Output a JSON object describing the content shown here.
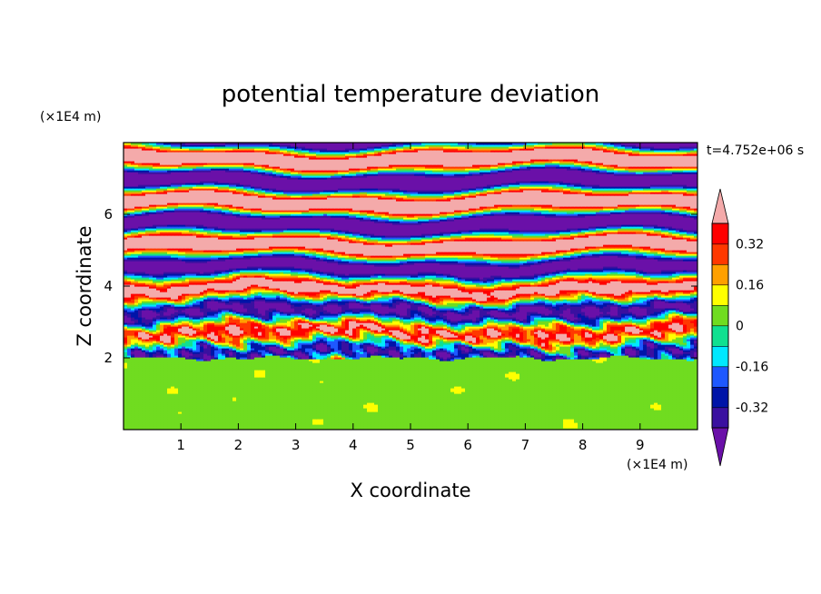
{
  "chart_data": {
    "type": "heatmap",
    "title": "potential temperature deviation",
    "xlabel": "X coordinate",
    "ylabel": "Z coordinate",
    "x_unit": "(×1E4 m)",
    "y_unit": "(×1E4 m)",
    "time_label": "t=4.752e+06 s",
    "xlim": [
      0,
      10
    ],
    "ylim": [
      0,
      8
    ],
    "x_ticks": [
      1,
      2,
      3,
      4,
      5,
      6,
      7,
      8,
      9
    ],
    "y_ticks": [
      2,
      4,
      6
    ],
    "colorbar": {
      "levels": [
        -0.4,
        -0.32,
        -0.24,
        -0.16,
        -0.08,
        0,
        0.08,
        0.16,
        0.24,
        0.32,
        0.4
      ],
      "colors": [
        "#6a10a8",
        "#3a10a0",
        "#0014a8",
        "#1e58ff",
        "#00e8ff",
        "#10e090",
        "#70dc20",
        "#ffff00",
        "#ffa000",
        "#ff3800",
        "#ff0000",
        "#f4aaaa"
      ],
      "tick_labels": [
        "0.32",
        "0.16",
        "0",
        "-0.16",
        "-0.32"
      ],
      "tick_values": [
        0.32,
        0.16,
        0,
        -0.16,
        -0.32
      ],
      "extend": "both"
    },
    "regions": {
      "lower_layer": {
        "z_range": [
          0,
          2
        ],
        "dominant_value": 0.0,
        "description_color": "#10e090"
      },
      "upper_layer": {
        "z_range": [
          2,
          8
        ],
        "pattern": "alternating horizontal bands",
        "band_values": [
          0.45,
          -0.45
        ]
      }
    },
    "grid": false
  }
}
